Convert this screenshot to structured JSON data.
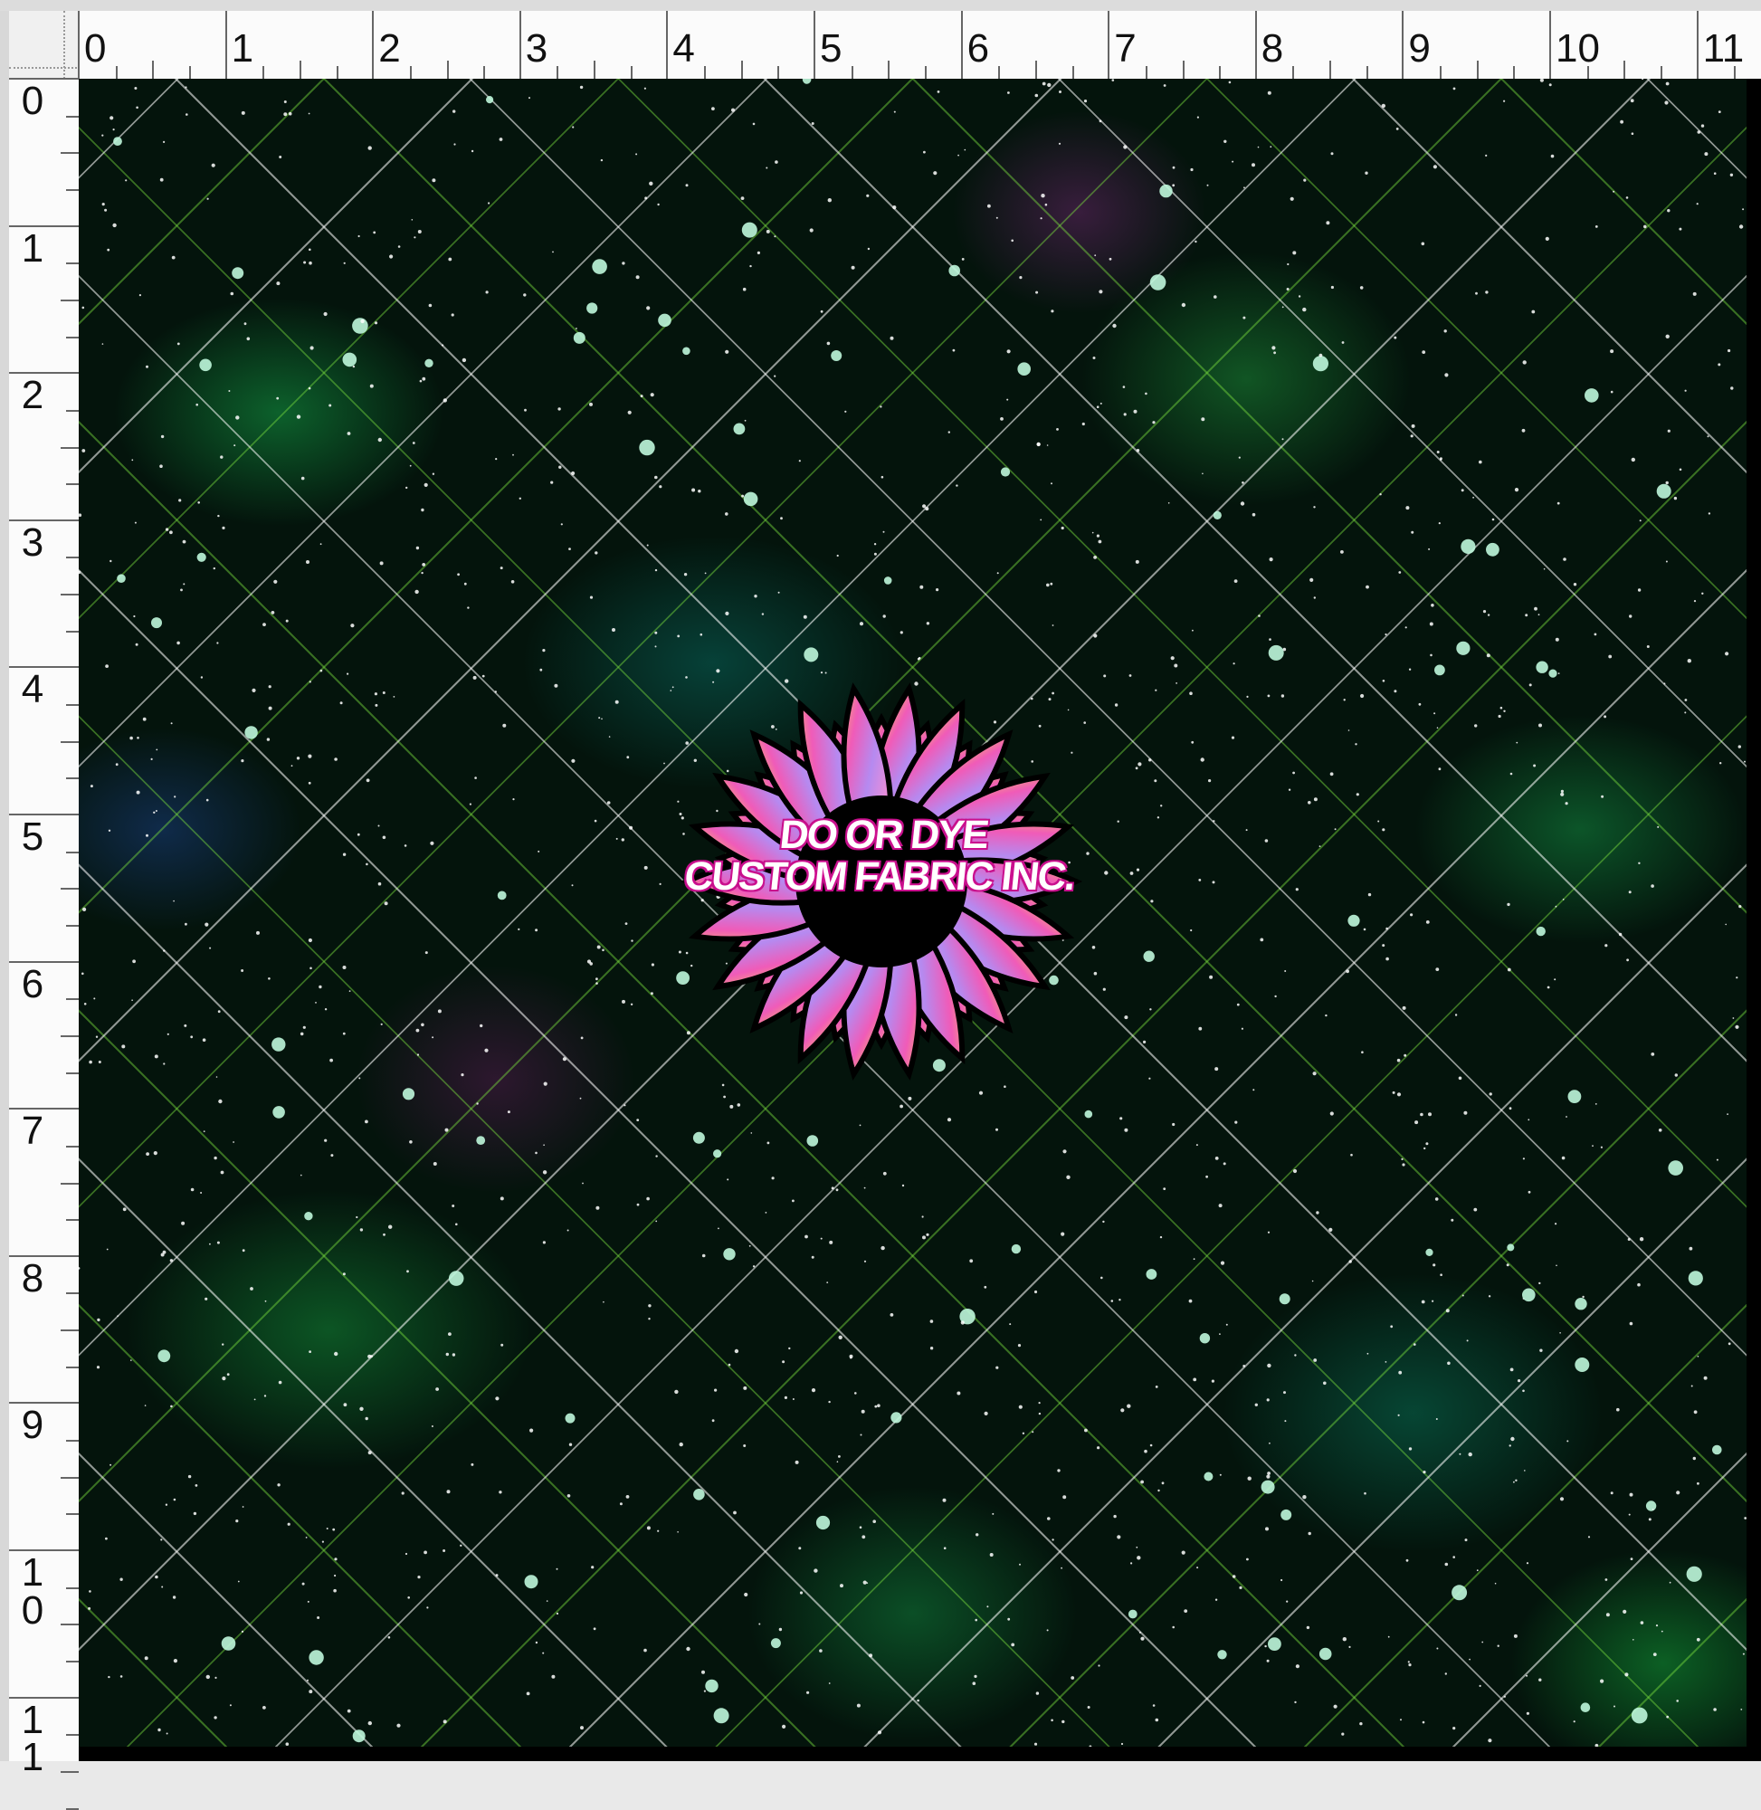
{
  "ruler": {
    "unit_labels_top": [
      "0",
      "1",
      "2",
      "3",
      "4",
      "5",
      "6",
      "7",
      "8",
      "9",
      "10",
      "11"
    ],
    "unit_labels_left": [
      "0",
      "1",
      "2",
      "3",
      "4",
      "5",
      "6",
      "7",
      "8",
      "9",
      "10",
      "11"
    ]
  },
  "design": {
    "logo_text_line1": "DO OR DYE",
    "logo_text_line2": "CUSTOM FABRIC INC.",
    "colors": {
      "background": "#04140c",
      "nebula_green": "#1ea046",
      "accent_pink": "#e0139a",
      "grid_line": "#ffffff"
    }
  }
}
